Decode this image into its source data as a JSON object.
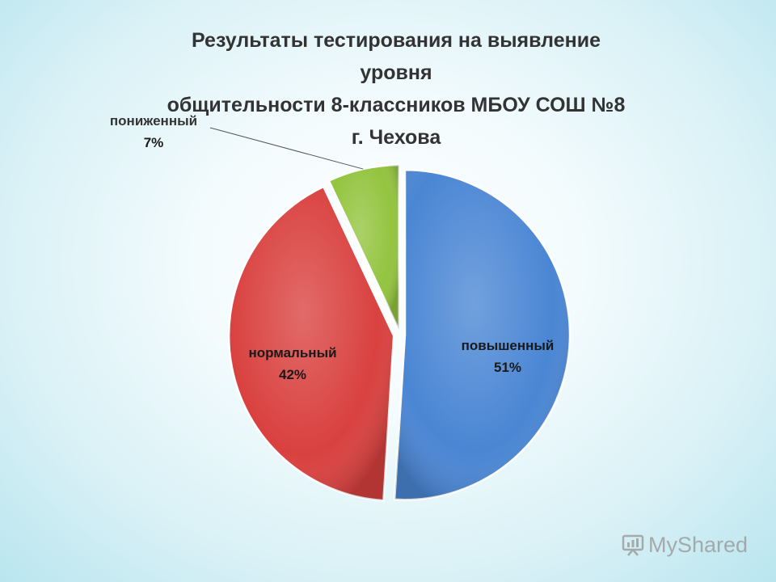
{
  "chart_data": {
    "type": "pie",
    "title": [
      "Результаты тестирования на выявление уровня",
      "общительности 8-классников МБОУ СОШ №8",
      "г. Чехова"
    ],
    "slices": [
      {
        "label": "повышенный",
        "value": 51,
        "value_text": "51%",
        "color": "#4a86d4"
      },
      {
        "label": "нормальный",
        "value": 42,
        "value_text": "42%",
        "color": "#d9413f"
      },
      {
        "label": "пониженный",
        "value": 7,
        "value_text": "7%",
        "color": "#93c43f"
      }
    ],
    "start_angle_deg": 0,
    "direction": "clockwise",
    "legend": "none",
    "data_labels": "category-and-percent"
  },
  "watermark": {
    "text": "MyShared",
    "icon": "presentation-board-icon"
  }
}
